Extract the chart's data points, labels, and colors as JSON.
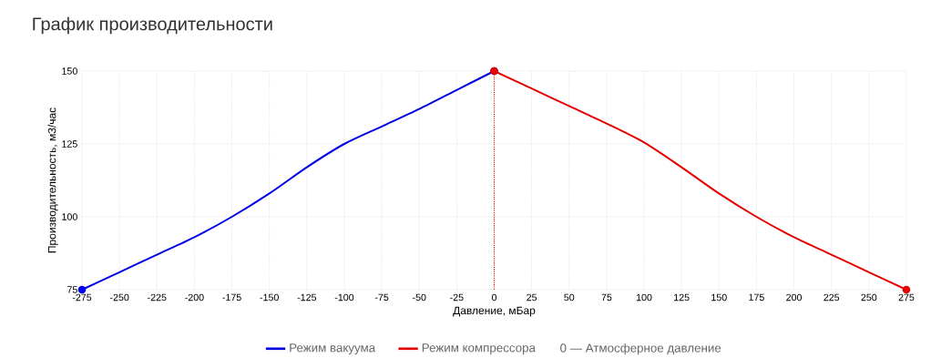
{
  "chart_data": {
    "type": "line",
    "title": "График производительности",
    "xlabel": "Давление, мБар",
    "ylabel": "Производительность, м3/час",
    "series": [
      {
        "name": "Режим вакуума",
        "color": "#0000e6",
        "x": [
          -275,
          -250,
          -225,
          -200,
          -175,
          -150,
          -125,
          -100,
          -75,
          -50,
          -25,
          0
        ],
        "values": [
          75,
          81,
          87,
          93,
          100,
          108,
          117,
          125,
          131,
          137,
          143.5,
          150
        ]
      },
      {
        "name": "Режим компрессора",
        "color": "#e60000",
        "x": [
          0,
          25,
          50,
          75,
          100,
          125,
          150,
          175,
          200,
          225,
          250,
          275
        ],
        "values": [
          150,
          144,
          138,
          132,
          125.5,
          117,
          108,
          100,
          93,
          87,
          81,
          75
        ]
      }
    ],
    "xlim": [
      -275,
      275
    ],
    "xticks": [
      -275,
      -250,
      -225,
      -200,
      -175,
      -150,
      -125,
      -100,
      -75,
      -50,
      -25,
      0,
      25,
      50,
      75,
      100,
      125,
      150,
      175,
      200,
      225,
      250,
      275
    ],
    "ylim": [
      75,
      150
    ],
    "yticks": [
      75,
      100,
      125,
      150
    ],
    "ref_lines": [
      {
        "axis": "x",
        "value": 0,
        "color": "#e60000",
        "line_style": "dotted"
      }
    ],
    "annotations": [
      "0 — Атмосферное давление"
    ],
    "grid": true,
    "legend": "bottom",
    "line_style": "solid"
  }
}
